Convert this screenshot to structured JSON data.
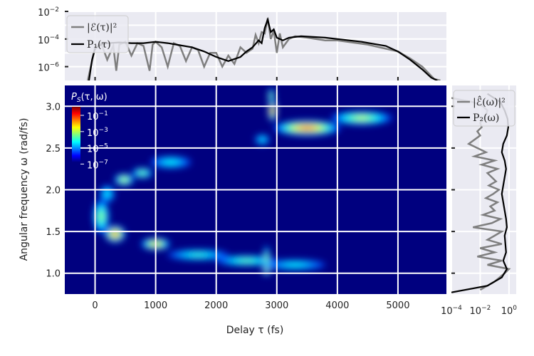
{
  "chart_data": [
    {
      "type": "heatmap",
      "panel": "main",
      "title": "",
      "xlabel": "Delay τ (fs)",
      "ylabel": "Angular frequency ω (rad/fs)",
      "xlim": [
        -500,
        5800
      ],
      "ylim": [
        0.75,
        3.25
      ],
      "xticks": [
        0,
        1000,
        2000,
        3000,
        4000,
        5000
      ],
      "xtick_labels": [
        "0",
        "1000",
        "2000",
        "3000",
        "4000",
        "5000"
      ],
      "yticks": [
        1.0,
        1.5,
        2.0,
        2.5,
        3.0
      ],
      "ytick_labels": [
        "1.0",
        "1.5",
        "2.0",
        "2.5",
        "3.0"
      ],
      "grid": true,
      "background_color": "#00007f",
      "colormap": "jet",
      "colorbar": {
        "label": "P_S(τ, ω)",
        "label_parts": [
          "P",
          "S",
          "(τ, ω)"
        ],
        "scale": "log",
        "ticks": [
          {
            "base": "10",
            "exp": "−1"
          },
          {
            "base": "10",
            "exp": "−3"
          },
          {
            "base": "10",
            "exp": "−5"
          },
          {
            "base": "10",
            "exp": "−7"
          }
        ],
        "placement": "top-left inside"
      },
      "blobs": [
        {
          "x": 100,
          "y": 1.68,
          "sx": 130,
          "sy": 0.2,
          "level": 0.55
        },
        {
          "x": 330,
          "y": 1.47,
          "sx": 170,
          "sy": 0.1,
          "level": 0.85
        },
        {
          "x": 1000,
          "y": 1.35,
          "sx": 240,
          "sy": 0.07,
          "level": 0.75
        },
        {
          "x": 1700,
          "y": 1.22,
          "sx": 500,
          "sy": 0.06,
          "level": 0.45
        },
        {
          "x": 2500,
          "y": 1.15,
          "sx": 500,
          "sy": 0.06,
          "level": 0.5
        },
        {
          "x": 3300,
          "y": 1.1,
          "sx": 500,
          "sy": 0.06,
          "level": 0.4
        },
        {
          "x": 2830,
          "y": 1.07,
          "sx": 70,
          "sy": 0.1,
          "level": 1.0
        },
        {
          "x": 2830,
          "y": 1.18,
          "sx": 50,
          "sy": 0.15,
          "level": 0.6
        },
        {
          "x": 200,
          "y": 1.95,
          "sx": 120,
          "sy": 0.1,
          "level": 0.4
        },
        {
          "x": 480,
          "y": 2.12,
          "sx": 160,
          "sy": 0.07,
          "level": 0.65
        },
        {
          "x": 780,
          "y": 2.2,
          "sx": 170,
          "sy": 0.06,
          "level": 0.55
        },
        {
          "x": 1250,
          "y": 2.33,
          "sx": 330,
          "sy": 0.07,
          "level": 0.4
        },
        {
          "x": 2930,
          "y": 2.95,
          "sx": 70,
          "sy": 0.13,
          "level": 0.92
        },
        {
          "x": 2910,
          "y": 3.12,
          "sx": 50,
          "sy": 0.1,
          "level": 0.6
        },
        {
          "x": 2760,
          "y": 2.6,
          "sx": 120,
          "sy": 0.06,
          "level": 0.4
        },
        {
          "x": 3500,
          "y": 2.74,
          "sx": 550,
          "sy": 0.09,
          "level": 0.85
        },
        {
          "x": 4400,
          "y": 2.86,
          "sx": 500,
          "sy": 0.08,
          "level": 0.6
        }
      ]
    },
    {
      "type": "line",
      "panel": "top",
      "xlim": [
        -500,
        5800
      ],
      "ylim_log": [
        -7,
        -2
      ],
      "yscale": "log",
      "yticks": [
        {
          "base": "10",
          "exp": "−2"
        },
        {
          "base": "10",
          "exp": "−4"
        },
        {
          "base": "10",
          "exp": "−6"
        }
      ],
      "legend": {
        "placement": "top-left",
        "entries": [
          "|ℰ(τ)|²",
          "P₁(τ)"
        ]
      },
      "series": [
        {
          "name": "|ℰ(τ)|²",
          "color": "#7f7f7f",
          "x": [
            -120,
            0,
            100,
            200,
            300,
            350,
            400,
            500,
            600,
            700,
            800,
            900,
            950,
            1000,
            1100,
            1200,
            1300,
            1400,
            1500,
            1600,
            1700,
            1800,
            1900,
            2000,
            2100,
            2200,
            2300,
            2400,
            2500,
            2600,
            2650,
            2700,
            2750,
            2800,
            2850,
            2900,
            2950,
            3000,
            3050,
            3100,
            3200,
            3300,
            3500,
            3800,
            4000,
            4500,
            5000,
            5200,
            5400,
            5600,
            5700
          ],
          "y": [
            -7.0,
            -4.6,
            -4.3,
            -5.5,
            -4.5,
            -6.3,
            -4.4,
            -4.2,
            -5.2,
            -4.3,
            -4.5,
            -6.3,
            -4.4,
            -4.2,
            -4.6,
            -6.0,
            -4.3,
            -4.5,
            -5.6,
            -4.6,
            -4.8,
            -6.0,
            -5.0,
            -5.0,
            -6.0,
            -5.2,
            -5.8,
            -4.6,
            -5.0,
            -4.7,
            -3.7,
            -4.3,
            -3.5,
            -3.6,
            -2.5,
            -4.0,
            -3.4,
            -5.0,
            -3.6,
            -4.6,
            -4.0,
            -3.8,
            -3.9,
            -4.1,
            -4.1,
            -4.4,
            -4.9,
            -5.4,
            -6.0,
            -6.9,
            -7.0
          ]
        },
        {
          "name": "P₁(τ)",
          "color": "#000000",
          "x": [
            -100,
            -50,
            0,
            100,
            200,
            400,
            600,
            800,
            1000,
            1200,
            1400,
            1600,
            1800,
            2000,
            2200,
            2400,
            2500,
            2600,
            2700,
            2750,
            2800,
            2850,
            2900,
            2950,
            3000,
            3100,
            3200,
            3400,
            3600,
            3800,
            4000,
            4400,
            4800,
            5000,
            5200,
            5400,
            5550,
            5650
          ],
          "y": [
            -7.0,
            -5.5,
            -4.7,
            -4.4,
            -4.3,
            -4.25,
            -4.3,
            -4.3,
            -4.2,
            -4.3,
            -4.45,
            -4.6,
            -4.9,
            -5.3,
            -5.6,
            -5.3,
            -4.9,
            -4.6,
            -4.1,
            -4.3,
            -3.2,
            -2.6,
            -3.5,
            -3.3,
            -3.9,
            -4.1,
            -3.9,
            -3.8,
            -3.85,
            -3.9,
            -4.0,
            -4.2,
            -4.5,
            -4.9,
            -5.5,
            -6.2,
            -6.8,
            -7.0
          ]
        }
      ]
    },
    {
      "type": "line",
      "panel": "right",
      "xscale": "log",
      "xlim_log": [
        -4,
        0.5
      ],
      "ylim": [
        0.75,
        3.25
      ],
      "xticks": [
        {
          "base": "10",
          "exp": "−4"
        },
        {
          "base": "10",
          "exp": "−2"
        },
        {
          "base": "10",
          "exp": "0"
        }
      ],
      "legend": {
        "placement": "top",
        "entries": [
          "|ℰ̂(ω)|²",
          "P₂(ω)"
        ]
      },
      "series": [
        {
          "name": "|ℰ̂(ω)|²",
          "color": "#7f7f7f",
          "y": [
            0.8,
            0.9,
            1.0,
            1.05,
            1.1,
            1.15,
            1.2,
            1.25,
            1.3,
            1.35,
            1.4,
            1.45,
            1.5,
            1.55,
            1.6,
            1.65,
            1.7,
            1.75,
            1.8,
            1.85,
            1.9,
            1.95,
            2.0,
            2.05,
            2.1,
            2.15,
            2.2,
            2.25,
            2.3,
            2.35,
            2.4,
            2.45,
            2.5,
            2.55,
            2.6,
            2.65,
            2.7,
            2.75,
            2.8,
            2.85,
            2.9,
            2.95,
            3.0,
            3.05,
            3.1
          ],
          "x": [
            -2.0,
            -1.0,
            -0.3,
            0.0,
            -1.5,
            -0.5,
            -2.2,
            -1.0,
            -2.0,
            -0.5,
            -1.5,
            -1.0,
            -0.5,
            -2.5,
            -1.2,
            -0.6,
            -1.8,
            -1.0,
            -1.3,
            -0.8,
            -1.6,
            -1.1,
            -0.7,
            -1.4,
            -0.9,
            -1.2,
            -1.5,
            -0.8,
            -1.9,
            -1.0,
            -2.4,
            -1.6,
            -2.2,
            -2.8,
            -2.4,
            -2.0,
            -2.2,
            -1.9,
            -2.0,
            -1.8,
            -1.6,
            -1.5,
            -1.8,
            -2.5,
            -4.0
          ]
        },
        {
          "name": "P₂(ω)",
          "color": "#000000",
          "y": [
            0.77,
            0.85,
            0.95,
            1.05,
            1.15,
            1.25,
            1.35,
            1.45,
            1.55,
            1.65,
            1.75,
            1.85,
            1.95,
            2.05,
            2.15,
            2.25,
            2.35,
            2.45,
            2.55,
            2.65,
            2.75,
            2.85,
            2.95,
            3.05,
            3.15
          ],
          "x": [
            -4.0,
            -1.5,
            -0.5,
            -0.15,
            -0.4,
            -0.2,
            -0.25,
            -0.3,
            -0.15,
            -0.2,
            -0.3,
            -0.4,
            -0.5,
            -0.4,
            -0.3,
            -0.2,
            -0.3,
            -0.5,
            -0.4,
            -0.15,
            -0.05,
            -0.1,
            -0.3,
            -0.6,
            -1.5
          ]
        }
      ]
    }
  ]
}
